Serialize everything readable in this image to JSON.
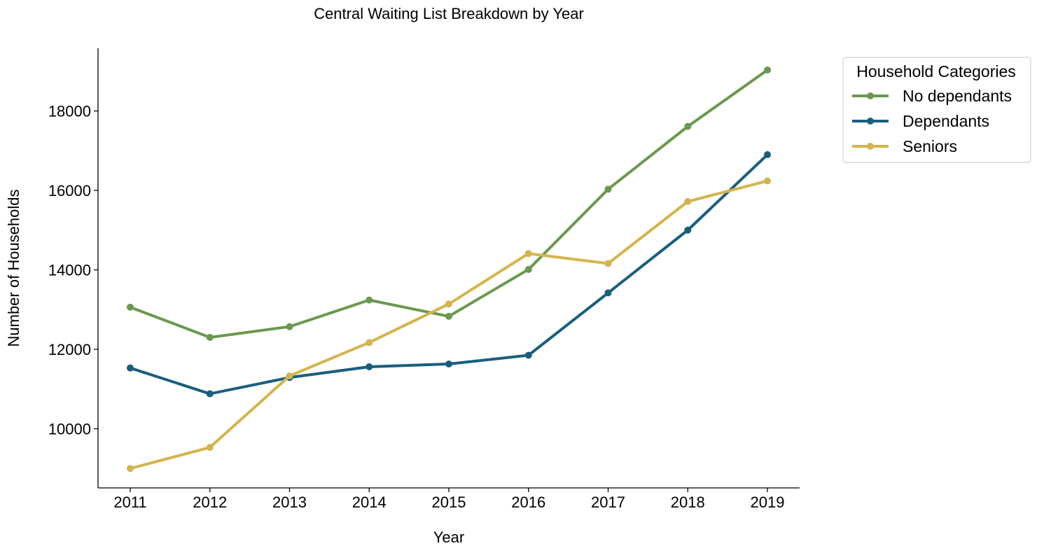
{
  "chart_data": {
    "type": "line",
    "title": "Central Waiting List Breakdown by Year",
    "xlabel": "Year",
    "ylabel": "Number of Households",
    "x": [
      2011,
      2012,
      2013,
      2014,
      2015,
      2016,
      2017,
      2018,
      2019
    ],
    "x_tick_labels": [
      "2011",
      "2012",
      "2013",
      "2014",
      "2015",
      "2016",
      "2017",
      "2018",
      "2019"
    ],
    "y_ticks": [
      10000,
      12000,
      14000,
      16000,
      18000
    ],
    "y_tick_labels": [
      "10000",
      "12000",
      "14000",
      "16000",
      "18000"
    ],
    "ylim": [
      8500,
      19550
    ],
    "grid": false,
    "legend": {
      "title": "Household Categories",
      "placement": "outside-top-right"
    },
    "series": [
      {
        "name": "No dependants",
        "color": "#6a994e",
        "values": [
          13060,
          12300,
          12570,
          13240,
          12830,
          14010,
          16030,
          17610,
          19030
        ]
      },
      {
        "name": "Dependants",
        "color": "#1a5e7e",
        "values": [
          11530,
          10880,
          11290,
          11560,
          11630,
          11850,
          13420,
          15000,
          16900
        ]
      },
      {
        "name": "Seniors",
        "color": "#d4b44c",
        "values": [
          9000,
          9530,
          11330,
          12170,
          13140,
          14410,
          14160,
          15720,
          16240
        ]
      }
    ]
  }
}
